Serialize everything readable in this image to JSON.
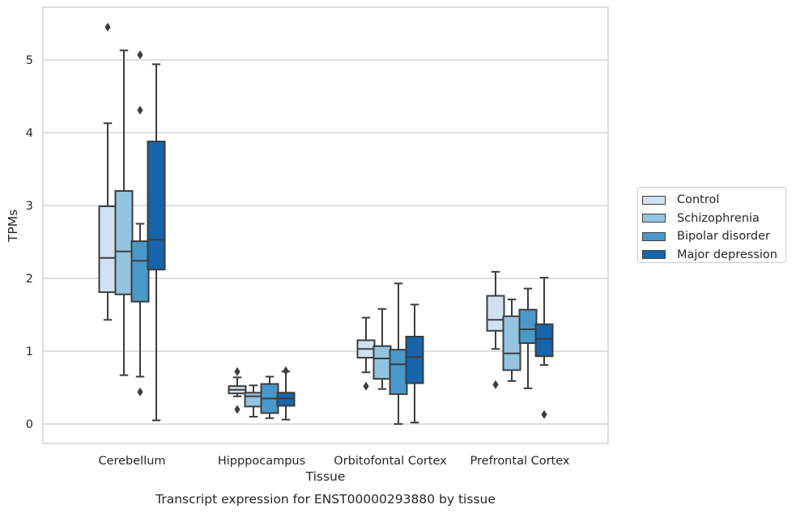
{
  "chart_data": {
    "type": "box",
    "title": "",
    "caption": "Transcript expression for ENST00000293880 by tissue",
    "xlabel": "Tissue",
    "ylabel": "TPMs",
    "ylim": [
      -0.25,
      5.73
    ],
    "yticks": [
      0,
      1,
      2,
      3,
      4,
      5
    ],
    "grid": "horizontal",
    "legend_position": "right",
    "categories": [
      "Cerebellum",
      "Hipppocampus",
      "Orbitofontal Cortex",
      "Prefrontal Cortex"
    ],
    "series": [
      {
        "name": "Control",
        "color": "#d0e1f2",
        "boxes": [
          {
            "whisker_low": 1.43,
            "q1": 1.81,
            "median": 2.28,
            "q3": 2.99,
            "whisker_high": 4.13,
            "outliers": [
              5.45
            ]
          },
          {
            "whisker_low": 0.38,
            "q1": 0.42,
            "median": 0.47,
            "q3": 0.52,
            "whisker_high": 0.64,
            "outliers": [
              0.72,
              0.2
            ]
          },
          {
            "whisker_low": 0.71,
            "q1": 0.91,
            "median": 1.03,
            "q3": 1.15,
            "whisker_high": 1.46,
            "outliers": [
              0.52
            ]
          },
          {
            "whisker_low": 1.03,
            "q1": 1.28,
            "median": 1.43,
            "q3": 1.76,
            "whisker_high": 2.09,
            "outliers": [
              0.54
            ]
          }
        ]
      },
      {
        "name": "Schizophrenia",
        "color": "#94c4df",
        "boxes": [
          {
            "whisker_low": 0.67,
            "q1": 1.78,
            "median": 2.37,
            "q3": 3.2,
            "whisker_high": 5.13,
            "outliers": []
          },
          {
            "whisker_low": 0.1,
            "q1": 0.24,
            "median": 0.38,
            "q3": 0.43,
            "whisker_high": 0.53,
            "outliers": []
          },
          {
            "whisker_low": 0.48,
            "q1": 0.62,
            "median": 0.9,
            "q3": 1.07,
            "whisker_high": 1.58,
            "outliers": []
          },
          {
            "whisker_low": 0.59,
            "q1": 0.74,
            "median": 0.97,
            "q3": 1.48,
            "whisker_high": 1.71,
            "outliers": []
          }
        ]
      },
      {
        "name": "Bipolar disorder",
        "color": "#4a98c9",
        "boxes": [
          {
            "whisker_low": 0.65,
            "q1": 1.68,
            "median": 2.24,
            "q3": 2.51,
            "whisker_high": 2.75,
            "outliers": [
              5.07,
              4.31,
              0.44
            ]
          },
          {
            "whisker_low": 0.08,
            "q1": 0.15,
            "median": 0.35,
            "q3": 0.55,
            "whisker_high": 0.65,
            "outliers": []
          },
          {
            "whisker_low": 0.0,
            "q1": 0.41,
            "median": 0.82,
            "q3": 1.02,
            "whisker_high": 1.93,
            "outliers": []
          },
          {
            "whisker_low": 0.49,
            "q1": 1.11,
            "median": 1.3,
            "q3": 1.57,
            "whisker_high": 1.86,
            "outliers": []
          }
        ]
      },
      {
        "name": "Major depression",
        "color": "#1764ab",
        "boxes": [
          {
            "whisker_low": 0.05,
            "q1": 2.12,
            "median": 2.53,
            "q3": 3.88,
            "whisker_high": 4.94,
            "outliers": []
          },
          {
            "whisker_low": 0.06,
            "q1": 0.25,
            "median": 0.35,
            "q3": 0.43,
            "whisker_high": 0.72,
            "outliers": [
              0.73
            ]
          },
          {
            "whisker_low": 0.02,
            "q1": 0.56,
            "median": 0.92,
            "q3": 1.2,
            "whisker_high": 1.64,
            "outliers": []
          },
          {
            "whisker_low": 0.81,
            "q1": 0.93,
            "median": 1.17,
            "q3": 1.37,
            "whisker_high": 2.01,
            "outliers": [
              0.13
            ]
          }
        ]
      }
    ]
  }
}
